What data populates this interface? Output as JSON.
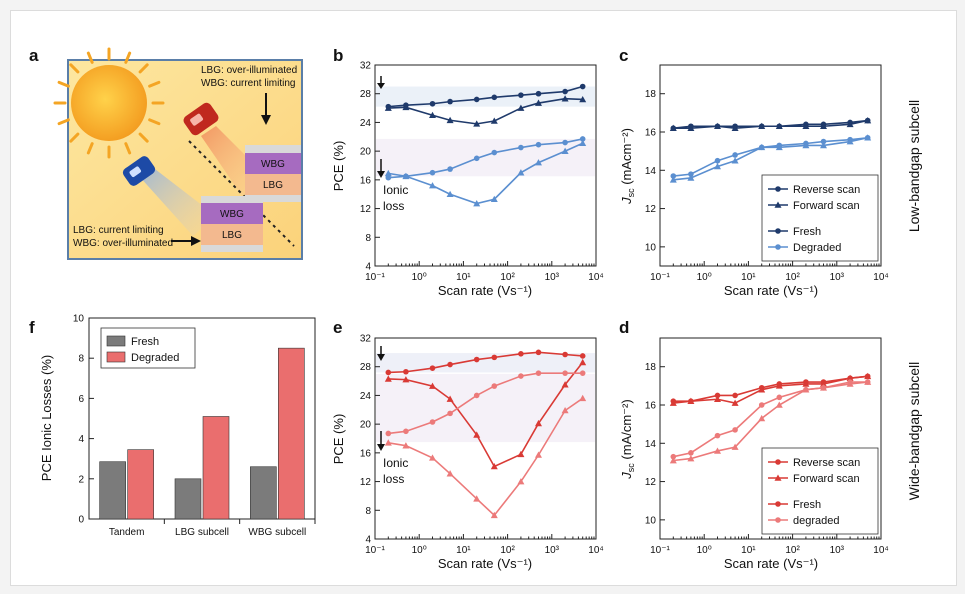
{
  "figure": {
    "panel_letters": [
      "a",
      "b",
      "c",
      "d",
      "e",
      "f"
    ],
    "side_labels": {
      "top": "Low-bandgap subcell",
      "bottom": "Wide-bandgap subcell"
    }
  },
  "scheme": {
    "top_note_line1": "LBG: over-illuminated",
    "top_note_line2": "WBG: current limiting",
    "bottom_note_line1": "LBG: current limiting",
    "bottom_note_line2": "WBG: over-illuminated",
    "layer_wbg": "WBG",
    "layer_lbg": "LBG",
    "colors": {
      "sun": "#f6a623",
      "wbg": "#9b62b6",
      "lbg": "#f0b38a",
      "background": "#fbe89a"
    }
  },
  "colors": {
    "navy": "#1f3a6b",
    "lightblue": "#5b8fd0",
    "red": "#d93a35",
    "pink": "#ec7a7a",
    "fresh_bar": "#7b7b7b",
    "degraded_bar": "#ea6e6e"
  },
  "chart_data": [
    {
      "panel": "b",
      "type": "line",
      "xlabel": "Scan rate (Vs⁻¹)",
      "ylabel": "PCE (%)",
      "xscale": "log",
      "xlim": [
        0.1,
        10000
      ],
      "ylim": [
        4,
        32
      ],
      "x_ticks": [
        0.1,
        1,
        10,
        100,
        1000,
        10000
      ],
      "x_tick_labels": [
        "10⁻¹",
        "10⁰",
        "10¹",
        "10²",
        "10³",
        "10⁴"
      ],
      "y_ticks": [
        4,
        8,
        12,
        16,
        20,
        24,
        28,
        32
      ],
      "annotation": "Ionic loss",
      "series": [
        {
          "name": "Fresh reverse",
          "color": "navy",
          "marker": "circle",
          "x": [
            0.2,
            0.5,
            2,
            5,
            20,
            50,
            200,
            500,
            2000,
            5000
          ],
          "y": [
            26.2,
            26.4,
            26.6,
            26.9,
            27.2,
            27.5,
            27.8,
            28.0,
            28.3,
            29.0
          ]
        },
        {
          "name": "Fresh forward",
          "color": "navy",
          "marker": "triangle",
          "x": [
            0.2,
            0.5,
            2,
            5,
            20,
            50,
            200,
            500,
            2000,
            5000
          ],
          "y": [
            26.0,
            26.1,
            25.0,
            24.3,
            23.8,
            24.2,
            26.0,
            26.7,
            27.3,
            27.2
          ]
        },
        {
          "name": "Degraded reverse",
          "color": "lightblue",
          "marker": "circle",
          "x": [
            0.2,
            0.5,
            2,
            5,
            20,
            50,
            200,
            500,
            2000,
            5000
          ],
          "y": [
            16.3,
            16.5,
            17.0,
            17.5,
            19.0,
            19.8,
            20.5,
            20.9,
            21.2,
            21.7
          ]
        },
        {
          "name": "Degraded forward",
          "color": "lightblue",
          "marker": "triangle",
          "x": [
            0.2,
            0.5,
            2,
            5,
            20,
            50,
            200,
            500,
            2000,
            5000
          ],
          "y": [
            16.9,
            16.5,
            15.2,
            14.0,
            12.7,
            13.3,
            17.0,
            18.4,
            20.0,
            21.1
          ]
        }
      ]
    },
    {
      "panel": "c",
      "type": "line",
      "xlabel": "Scan rate (Vs⁻¹)",
      "ylabel": "J",
      "ylabel_sub": "sc",
      "ylabel_unit": " (mAcm⁻²)",
      "xscale": "log",
      "xlim": [
        0.1,
        10000
      ],
      "ylim": [
        9,
        19.5
      ],
      "x_ticks": [
        0.1,
        1,
        10,
        100,
        1000,
        10000
      ],
      "x_tick_labels": [
        "10⁻¹",
        "10⁰",
        "10¹",
        "10²",
        "10³",
        "10⁴"
      ],
      "y_ticks": [
        10,
        12,
        14,
        16,
        18
      ],
      "legend": [
        "Reverse scan",
        "Forward scan",
        "Fresh",
        "Degraded"
      ],
      "series": [
        {
          "name": "Fresh reverse",
          "color": "navy",
          "marker": "circle",
          "x": [
            0.2,
            0.5,
            2,
            5,
            20,
            50,
            200,
            500,
            2000,
            5000
          ],
          "y": [
            16.2,
            16.3,
            16.3,
            16.3,
            16.3,
            16.3,
            16.4,
            16.4,
            16.5,
            16.6
          ]
        },
        {
          "name": "Fresh forward",
          "color": "navy",
          "marker": "triangle",
          "x": [
            0.2,
            0.5,
            2,
            5,
            20,
            50,
            200,
            500,
            2000,
            5000
          ],
          "y": [
            16.2,
            16.2,
            16.3,
            16.2,
            16.3,
            16.3,
            16.3,
            16.3,
            16.4,
            16.6
          ]
        },
        {
          "name": "Degraded reverse",
          "color": "lightblue",
          "marker": "circle",
          "x": [
            0.2,
            0.5,
            2,
            5,
            20,
            50,
            200,
            500,
            2000,
            5000
          ],
          "y": [
            13.7,
            13.8,
            14.5,
            14.8,
            15.2,
            15.3,
            15.4,
            15.5,
            15.6,
            15.7
          ]
        },
        {
          "name": "Degraded forward",
          "color": "lightblue",
          "marker": "triangle",
          "x": [
            0.2,
            0.5,
            2,
            5,
            20,
            50,
            200,
            500,
            2000,
            5000
          ],
          "y": [
            13.5,
            13.6,
            14.2,
            14.5,
            15.2,
            15.2,
            15.3,
            15.3,
            15.5,
            15.7
          ]
        }
      ]
    },
    {
      "panel": "e",
      "type": "line",
      "xlabel": "Scan rate (Vs⁻¹)",
      "ylabel": "PCE (%)",
      "xscale": "log",
      "xlim": [
        0.1,
        10000
      ],
      "ylim": [
        4,
        32
      ],
      "x_ticks": [
        0.1,
        1,
        10,
        100,
        1000,
        10000
      ],
      "x_tick_labels": [
        "10⁻¹",
        "10⁰",
        "10¹",
        "10²",
        "10³",
        "10⁴"
      ],
      "y_ticks": [
        4,
        8,
        12,
        16,
        20,
        24,
        28,
        32
      ],
      "annotation": "Ionic loss",
      "series": [
        {
          "name": "Fresh reverse",
          "color": "red",
          "marker": "circle",
          "x": [
            0.2,
            0.5,
            2,
            5,
            20,
            50,
            200,
            500,
            2000,
            5000
          ],
          "y": [
            27.2,
            27.3,
            27.8,
            28.3,
            29.0,
            29.3,
            29.8,
            30.0,
            29.7,
            29.5
          ]
        },
        {
          "name": "Fresh forward",
          "color": "red",
          "marker": "triangle",
          "x": [
            0.2,
            0.5,
            2,
            5,
            20,
            50,
            200,
            500,
            2000,
            5000
          ],
          "y": [
            26.3,
            26.2,
            25.3,
            23.5,
            18.5,
            14.1,
            15.8,
            20.1,
            25.5,
            28.6
          ]
        },
        {
          "name": "Degraded reverse",
          "color": "pink",
          "marker": "circle",
          "x": [
            0.2,
            0.5,
            2,
            5,
            20,
            50,
            200,
            500,
            2000,
            5000
          ],
          "y": [
            18.7,
            19.0,
            20.3,
            21.5,
            24.0,
            25.3,
            26.7,
            27.1,
            27.1,
            27.1
          ]
        },
        {
          "name": "Degraded forward",
          "color": "pink",
          "marker": "triangle",
          "x": [
            0.2,
            0.5,
            2,
            5,
            20,
            50,
            200,
            500,
            2000,
            5000
          ],
          "y": [
            17.4,
            17.0,
            15.3,
            13.1,
            9.6,
            7.3,
            12.0,
            15.7,
            21.9,
            23.6
          ]
        }
      ]
    },
    {
      "panel": "d",
      "type": "line",
      "xlabel": "Scan rate (Vs⁻¹)",
      "ylabel": "J",
      "ylabel_sub": "sc",
      "ylabel_unit": " (mA/cm⁻²)",
      "xscale": "log",
      "xlim": [
        0.1,
        10000
      ],
      "ylim": [
        9,
        19.5
      ],
      "x_ticks": [
        0.1,
        1,
        10,
        100,
        1000,
        10000
      ],
      "x_tick_labels": [
        "10⁻¹",
        "10⁰",
        "10¹",
        "10²",
        "10³",
        "10⁴"
      ],
      "y_ticks": [
        10,
        12,
        14,
        16,
        18
      ],
      "legend": [
        "Reverse scan",
        "Forward scan",
        "Fresh",
        "degraded"
      ],
      "series": [
        {
          "name": "Fresh reverse",
          "color": "red",
          "marker": "circle",
          "x": [
            0.2,
            0.5,
            2,
            5,
            20,
            50,
            200,
            500,
            2000,
            5000
          ],
          "y": [
            16.2,
            16.2,
            16.5,
            16.5,
            16.9,
            17.1,
            17.2,
            17.2,
            17.4,
            17.5
          ]
        },
        {
          "name": "Fresh forward",
          "color": "red",
          "marker": "triangle",
          "x": [
            0.2,
            0.5,
            2,
            5,
            20,
            50,
            200,
            500,
            2000,
            5000
          ],
          "y": [
            16.1,
            16.2,
            16.3,
            16.1,
            16.8,
            17.0,
            17.1,
            17.1,
            17.4,
            17.5
          ]
        },
        {
          "name": "Degraded reverse",
          "color": "pink",
          "marker": "circle",
          "x": [
            0.2,
            0.5,
            2,
            5,
            20,
            50,
            200,
            500,
            2000,
            5000
          ],
          "y": [
            13.3,
            13.5,
            14.4,
            14.7,
            16.0,
            16.4,
            16.8,
            16.9,
            17.2,
            17.2
          ]
        },
        {
          "name": "Degraded forward",
          "color": "pink",
          "marker": "triangle",
          "x": [
            0.2,
            0.5,
            2,
            5,
            20,
            50,
            200,
            500,
            2000,
            5000
          ],
          "y": [
            13.1,
            13.2,
            13.6,
            13.8,
            15.3,
            16.0,
            16.8,
            16.9,
            17.1,
            17.2
          ]
        }
      ]
    },
    {
      "panel": "f",
      "type": "bar",
      "ylabel": "PCE Ionic Losses (%)",
      "ylim": [
        0,
        10
      ],
      "y_ticks": [
        0,
        2,
        4,
        6,
        8,
        10
      ],
      "categories": [
        "Tandem",
        "LBG subcell",
        "WBG subcell"
      ],
      "legend": [
        "Fresh",
        "Degraded"
      ],
      "series": [
        {
          "name": "Fresh",
          "color": "fresh_bar",
          "values": [
            2.85,
            2.0,
            2.6
          ]
        },
        {
          "name": "Degraded",
          "color": "degraded_bar",
          "values": [
            3.45,
            5.1,
            8.5
          ]
        }
      ]
    }
  ]
}
